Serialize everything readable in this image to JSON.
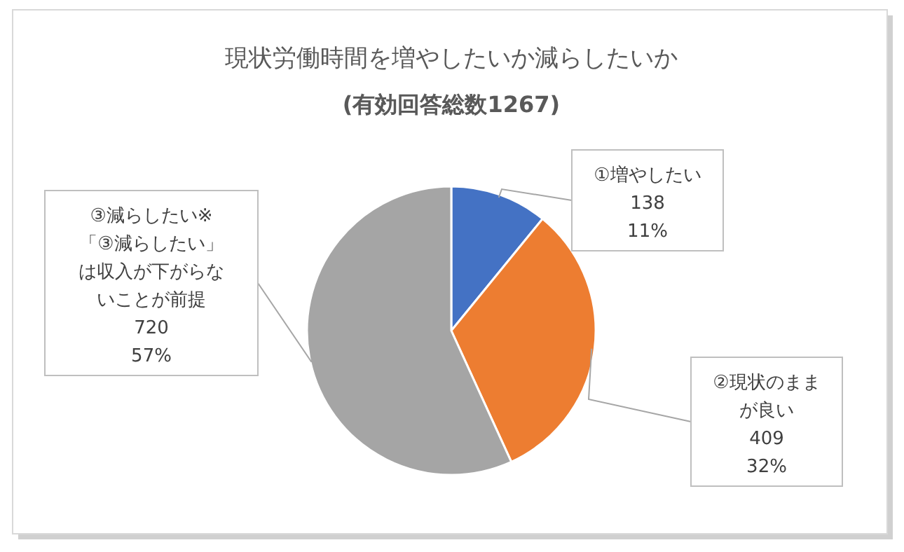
{
  "chart_data": {
    "type": "pie",
    "title": "現状労働時間を増やしたいか減らしたいか",
    "subtitle": "(有効回答総数1267)",
    "categories": [
      "①増やしたい",
      "②現状のままが良い",
      "③減らしたい※「③減らしたい」は収入が下がらないことが前提"
    ],
    "values": [
      138,
      409,
      720
    ],
    "value_labels": [
      "138\n11%",
      "409\n32%",
      "720\n57%"
    ],
    "colors": [
      "#4472c4",
      "#ed7d31",
      "#a5a5a5"
    ],
    "legend": false
  }
}
